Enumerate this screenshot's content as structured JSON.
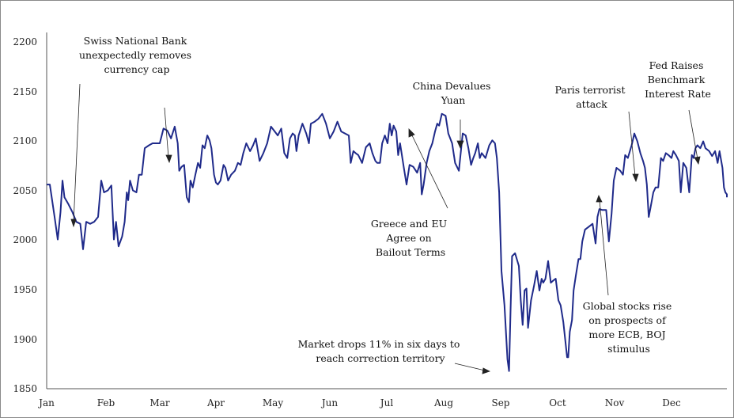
{
  "chart_data": {
    "type": "line",
    "title": "",
    "xlabel": "",
    "ylabel": "",
    "ylim": [
      1850,
      2200
    ],
    "y_ticks": [
      "1850",
      "1900",
      "1950",
      "2000",
      "2050",
      "2100",
      "2150",
      "2200"
    ],
    "x_ticks": [
      "Jan",
      "Feb",
      "Mar",
      "Apr",
      "May",
      "Jun",
      "Jul",
      "Aug",
      "Sep",
      "Oct",
      "Nov",
      "Dec"
    ],
    "line_color": "#1f2a8a",
    "grid": false,
    "series": [
      {
        "values": [
          [
            0.0,
            2058
          ],
          [
            0.08,
            2058
          ],
          [
            0.2,
            2025
          ],
          [
            0.28,
            2002
          ],
          [
            0.35,
            2030
          ],
          [
            0.4,
            2062
          ],
          [
            0.45,
            2045
          ],
          [
            0.55,
            2038
          ],
          [
            0.65,
            2030
          ],
          [
            0.75,
            2020
          ],
          [
            0.85,
            2018
          ],
          [
            0.92,
            1992
          ],
          [
            1.0,
            2020
          ],
          [
            1.1,
            2018
          ],
          [
            1.2,
            2020
          ],
          [
            1.3,
            2025
          ],
          [
            1.38,
            2062
          ],
          [
            1.45,
            2050
          ],
          [
            1.55,
            2052
          ],
          [
            1.65,
            2057
          ],
          [
            1.72,
            2002
          ],
          [
            1.78,
            2020
          ],
          [
            1.85,
            1995
          ],
          [
            1.95,
            2005
          ],
          [
            2.02,
            2020
          ],
          [
            2.08,
            2050
          ],
          [
            2.12,
            2042
          ],
          [
            2.17,
            2062
          ],
          [
            2.25,
            2052
          ],
          [
            2.35,
            2050
          ],
          [
            2.42,
            2068
          ],
          [
            2.5,
            2068
          ],
          [
            2.58,
            2095
          ],
          [
            2.7,
            2098
          ],
          [
            2.8,
            2100
          ],
          [
            2.9,
            2100
          ],
          [
            3.0,
            2100
          ],
          [
            3.1,
            2115
          ],
          [
            3.2,
            2113
          ],
          [
            3.3,
            2105
          ],
          [
            3.4,
            2117
          ],
          [
            3.48,
            2100
          ],
          [
            3.52,
            2072
          ],
          [
            3.58,
            2076
          ],
          [
            3.65,
            2078
          ],
          [
            3.72,
            2045
          ],
          [
            3.78,
            2040
          ],
          [
            3.82,
            2062
          ],
          [
            3.88,
            2055
          ],
          [
            3.95,
            2068
          ],
          [
            4.02,
            2080
          ],
          [
            4.08,
            2075
          ],
          [
            4.14,
            2098
          ],
          [
            4.2,
            2095
          ],
          [
            4.27,
            2108
          ],
          [
            4.33,
            2103
          ],
          [
            4.38,
            2095
          ],
          [
            4.45,
            2068
          ],
          [
            4.5,
            2060
          ],
          [
            4.55,
            2058
          ],
          [
            4.62,
            2062
          ],
          [
            4.7,
            2078
          ],
          [
            4.75,
            2075
          ],
          [
            4.82,
            2062
          ],
          [
            4.9,
            2068
          ],
          [
            5.0,
            2072
          ],
          [
            5.08,
            2080
          ],
          [
            5.15,
            2078
          ],
          [
            5.22,
            2090
          ],
          [
            5.3,
            2100
          ],
          [
            5.4,
            2092
          ],
          [
            5.48,
            2098
          ],
          [
            5.55,
            2105
          ],
          [
            5.65,
            2082
          ],
          [
            5.75,
            2090
          ],
          [
            5.85,
            2100
          ],
          [
            5.95,
            2117
          ],
          [
            6.05,
            2112
          ],
          [
            6.13,
            2108
          ],
          [
            6.22,
            2115
          ],
          [
            6.3,
            2090
          ],
          [
            6.38,
            2085
          ],
          [
            6.45,
            2105
          ],
          [
            6.52,
            2110
          ],
          [
            6.58,
            2108
          ],
          [
            6.62,
            2092
          ],
          [
            6.68,
            2108
          ],
          [
            6.78,
            2120
          ],
          [
            6.88,
            2110
          ],
          [
            6.95,
            2100
          ],
          [
            7.0,
            2120
          ],
          [
            7.1,
            2122
          ],
          [
            7.2,
            2125
          ],
          [
            7.3,
            2130
          ],
          [
            7.4,
            2120
          ],
          [
            7.5,
            2105
          ],
          [
            7.6,
            2112
          ],
          [
            7.7,
            2122
          ],
          [
            7.8,
            2112
          ],
          [
            7.9,
            2110
          ],
          [
            8.0,
            2108
          ],
          [
            8.05,
            2080
          ],
          [
            8.12,
            2092
          ],
          [
            8.18,
            2090
          ],
          [
            8.25,
            2088
          ],
          [
            8.35,
            2080
          ],
          [
            8.45,
            2096
          ],
          [
            8.55,
            2100
          ],
          [
            8.62,
            2090
          ],
          [
            8.7,
            2082
          ],
          [
            8.75,
            2080
          ],
          [
            8.82,
            2080
          ],
          [
            8.88,
            2100
          ],
          [
            8.95,
            2108
          ],
          [
            9.02,
            2100
          ],
          [
            9.08,
            2120
          ],
          [
            9.13,
            2108
          ],
          [
            9.18,
            2118
          ],
          [
            9.25,
            2112
          ],
          [
            9.3,
            2088
          ],
          [
            9.35,
            2100
          ],
          [
            9.45,
            2075
          ],
          [
            9.52,
            2058
          ],
          [
            9.6,
            2078
          ],
          [
            9.7,
            2076
          ],
          [
            9.8,
            2070
          ],
          [
            9.88,
            2080
          ],
          [
            9.92,
            2048
          ],
          [
            9.97,
            2058
          ],
          [
            10.05,
            2080
          ],
          [
            10.12,
            2092
          ],
          [
            10.2,
            2100
          ],
          [
            10.27,
            2112
          ],
          [
            10.33,
            2120
          ],
          [
            10.38,
            2118
          ],
          [
            10.45,
            2130
          ],
          [
            10.55,
            2128
          ],
          [
            10.62,
            2110
          ],
          [
            10.72,
            2100
          ],
          [
            10.8,
            2080
          ],
          [
            10.9,
            2072
          ],
          [
            11.0,
            2110
          ],
          [
            11.08,
            2108
          ],
          [
            11.15,
            2095
          ],
          [
            11.22,
            2078
          ],
          [
            11.28,
            2085
          ],
          [
            11.33,
            2090
          ],
          [
            11.4,
            2100
          ],
          [
            11.45,
            2085
          ],
          [
            11.5,
            2090
          ],
          [
            11.6,
            2085
          ],
          [
            11.7,
            2098
          ],
          [
            11.78,
            2103
          ],
          [
            11.85,
            2100
          ],
          [
            11.9,
            2085
          ],
          [
            11.96,
            2050
          ],
          [
            12.02,
            1970
          ],
          [
            12.1,
            1935
          ],
          [
            12.18,
            1880
          ],
          [
            12.22,
            1868
          ],
          [
            12.26,
            1930
          ],
          [
            12.3,
            1985
          ],
          [
            12.38,
            1988
          ],
          [
            12.48,
            1975
          ],
          [
            12.53,
            1940
          ],
          [
            12.58,
            1915
          ],
          [
            12.63,
            1950
          ],
          [
            12.68,
            1952
          ],
          [
            12.72,
            1912
          ],
          [
            12.8,
            1940
          ],
          [
            12.88,
            1955
          ],
          [
            12.95,
            1970
          ],
          [
            13.02,
            1950
          ],
          [
            13.08,
            1962
          ],
          [
            13.12,
            1958
          ],
          [
            13.18,
            1962
          ],
          [
            13.25,
            1980
          ],
          [
            13.32,
            1958
          ],
          [
            13.38,
            1960
          ],
          [
            13.45,
            1962
          ],
          [
            13.52,
            1940
          ],
          [
            13.58,
            1935
          ],
          [
            13.65,
            1918
          ],
          [
            13.7,
            1900
          ],
          [
            13.75,
            1882
          ],
          [
            13.78,
            1882
          ],
          [
            13.82,
            1908
          ],
          [
            13.88,
            1920
          ],
          [
            13.92,
            1950
          ],
          [
            13.98,
            1965
          ],
          [
            14.05,
            1982
          ],
          [
            14.1,
            1982
          ],
          [
            14.15,
            2000
          ],
          [
            14.22,
            2012
          ],
          [
            14.32,
            2015
          ],
          [
            14.42,
            2018
          ],
          [
            14.5,
            1998
          ],
          [
            14.55,
            2025
          ],
          [
            14.6,
            2033
          ],
          [
            14.68,
            2032
          ],
          [
            14.78,
            2032
          ],
          [
            14.85,
            2000
          ],
          [
            14.92,
            2028
          ],
          [
            14.98,
            2062
          ],
          [
            15.05,
            2075
          ],
          [
            15.15,
            2072
          ],
          [
            15.22,
            2068
          ],
          [
            15.28,
            2088
          ],
          [
            15.35,
            2085
          ],
          [
            15.45,
            2098
          ],
          [
            15.52,
            2110
          ],
          [
            15.6,
            2102
          ],
          [
            15.68,
            2090
          ],
          [
            15.75,
            2082
          ],
          [
            15.8,
            2075
          ],
          [
            15.85,
            2058
          ],
          [
            15.9,
            2025
          ],
          [
            15.95,
            2035
          ],
          [
            16.02,
            2050
          ],
          [
            16.08,
            2055
          ],
          [
            16.15,
            2055
          ],
          [
            16.22,
            2085
          ],
          [
            16.28,
            2082
          ],
          [
            16.35,
            2090
          ],
          [
            16.42,
            2088
          ],
          [
            16.5,
            2085
          ],
          [
            16.55,
            2092
          ],
          [
            16.62,
            2088
          ],
          [
            16.7,
            2082
          ],
          [
            16.75,
            2050
          ],
          [
            16.82,
            2080
          ],
          [
            16.9,
            2075
          ],
          [
            16.98,
            2050
          ],
          [
            17.05,
            2088
          ],
          [
            17.1,
            2085
          ],
          [
            17.15,
            2095
          ],
          [
            17.2,
            2098
          ],
          [
            17.28,
            2095
          ],
          [
            17.36,
            2102
          ],
          [
            17.42,
            2095
          ],
          [
            17.52,
            2092
          ],
          [
            17.6,
            2087
          ],
          [
            17.68,
            2092
          ],
          [
            17.75,
            2080
          ],
          [
            17.8,
            2092
          ],
          [
            17.88,
            2075
          ],
          [
            17.92,
            2055
          ],
          [
            17.96,
            2050
          ],
          [
            18.0,
            2048
          ],
          [
            18.05,
            2045
          ]
        ]
      }
    ],
    "annotations": [
      {
        "lines": [
          "Swiss National Bank",
          "unexpectedly removes",
          "currency cap"
        ]
      },
      {
        "lines": [
          "China Devalues",
          "Yuan"
        ]
      },
      {
        "lines": [
          "Paris terrorist",
          "attack"
        ]
      },
      {
        "lines": [
          "Fed Raises",
          "Benchmark",
          "Interest Rate"
        ]
      },
      {
        "lines": [
          "Greece and EU",
          "Agree on",
          "Bailout Terms"
        ]
      },
      {
        "lines": [
          "Market drops 11% in six days to",
          "reach correction territory"
        ]
      },
      {
        "lines": [
          "Global stocks rise",
          "on prospects of",
          "more ECB, BOJ",
          "stimulus"
        ]
      }
    ]
  }
}
